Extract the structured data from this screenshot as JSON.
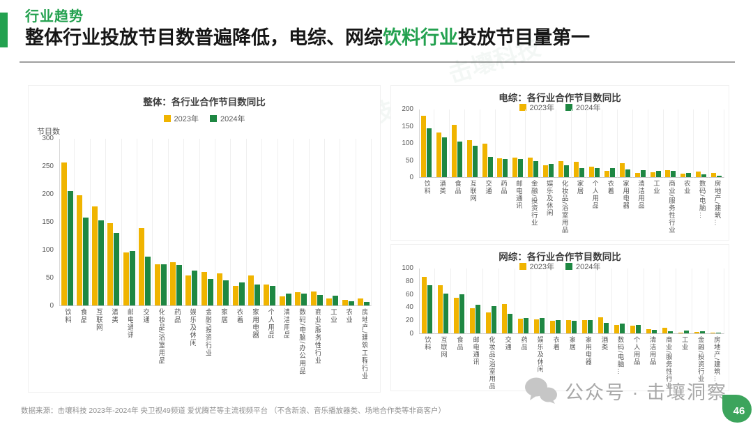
{
  "header": {
    "eyebrow": "行业趋势",
    "title": {
      "pre": "整体行业投放节目数普遍降低，电综、网综",
      "highlight": "饮料行业",
      "post": "投放节目量第一"
    }
  },
  "colors": {
    "bar_2023": "#F0B400",
    "bar_2024": "#1E8742",
    "accent": "#23A14F",
    "badge": "#3CA45C"
  },
  "watermark": "击壤科技",
  "chart_data": [
    {
      "id": "overall",
      "type": "bar",
      "title": "整体：各行业合作节目数同比",
      "ylabel": "节目数",
      "ylim": [
        0,
        300
      ],
      "yticks": [
        0,
        50,
        100,
        150,
        200,
        250,
        300
      ],
      "legend_position": "top",
      "grid": "vertical",
      "categories": [
        "饮料",
        "食品",
        "互联网",
        "酒类",
        "邮电通讯",
        "交通",
        "化妆品/浴室用品",
        "药品",
        "娱乐及休闲",
        "金融/投资行业",
        "家居",
        "衣着",
        "家用电器",
        "个人用品",
        "清洁用品",
        "数码/电脑/办公用品",
        "商业/服务性行业",
        "工业",
        "农业",
        "房地产/建筑工程行业"
      ],
      "series": [
        {
          "name": "2023年",
          "values": [
            256,
            198,
            177,
            148,
            95,
            139,
            74,
            77,
            54,
            60,
            58,
            35,
            54,
            38,
            16,
            24,
            25,
            13,
            10,
            12
          ]
        },
        {
          "name": "2024年",
          "values": [
            205,
            157,
            152,
            130,
            97,
            87,
            74,
            73,
            62,
            48,
            45,
            41,
            38,
            35,
            21,
            21,
            19,
            18,
            8,
            6
          ]
        }
      ]
    },
    {
      "id": "tv-variety",
      "type": "bar",
      "title": "电综：各行业合作节目数同比",
      "ylabel": "",
      "ylim": [
        0,
        200
      ],
      "yticks": [
        0,
        50,
        100,
        150,
        200
      ],
      "legend_position": "top",
      "grid": "vertical",
      "categories": [
        "饮料",
        "酒类",
        "食品",
        "互联网",
        "交通",
        "药品",
        "邮电通讯",
        "金融/投资行业",
        "娱乐及休闲",
        "化妆品/浴室用品",
        "家居",
        "个人用品",
        "衣着",
        "家用电器",
        "清洁用品",
        "工业",
        "商业/服务性行业",
        "农业",
        "数码/电脑…",
        "房地产/建筑…"
      ],
      "series": [
        {
          "name": "2023年",
          "values": [
            180,
            130,
            154,
            108,
            97,
            55,
            58,
            58,
            34,
            47,
            44,
            31,
            18,
            40,
            12,
            14,
            20,
            10,
            17,
            12
          ]
        },
        {
          "name": "2024年",
          "values": [
            142,
            117,
            105,
            92,
            59,
            53,
            54,
            46,
            39,
            35,
            27,
            26,
            27,
            22,
            20,
            19,
            19,
            12,
            9,
            5
          ]
        }
      ]
    },
    {
      "id": "web-variety",
      "type": "bar",
      "title": "网综：各行业合作节目数同比",
      "ylabel": "",
      "ylim": [
        0,
        100
      ],
      "yticks": [
        0,
        20,
        40,
        60,
        80,
        100
      ],
      "legend_position": "top",
      "grid": "vertical",
      "categories": [
        "饮料",
        "互联网",
        "食品",
        "邮电通讯",
        "化妆品/浴室用品",
        "交通",
        "药品",
        "娱乐及休闲",
        "衣着",
        "家居",
        "家用电器",
        "酒类",
        "数码/电脑…",
        "个人用品",
        "清洁用品",
        "商业/服务性行业",
        "工业",
        "金融/投资行业",
        "房地产/建筑…"
      ],
      "series": [
        {
          "name": "2023年",
          "values": [
            86,
            73,
            54,
            38,
            32,
            45,
            22,
            21,
            19,
            20,
            20,
            24,
            13,
            12,
            6,
            8,
            1,
            2,
            1
          ]
        },
        {
          "name": "2024年",
          "values": [
            73,
            61,
            60,
            44,
            41,
            30,
            23,
            23,
            20,
            19,
            20,
            16,
            15,
            13,
            5,
            3,
            4,
            3,
            1
          ]
        }
      ]
    }
  ],
  "footer": {
    "source": "数据来源：击壤科技  2023年-2024年 央卫视49频道  爱优腾芒等主流视频平台 （不含新浪、音乐播放器类、场地合作类等非商客户）",
    "wechat_label": "公众号 · 击壤洞察",
    "page": "46"
  }
}
